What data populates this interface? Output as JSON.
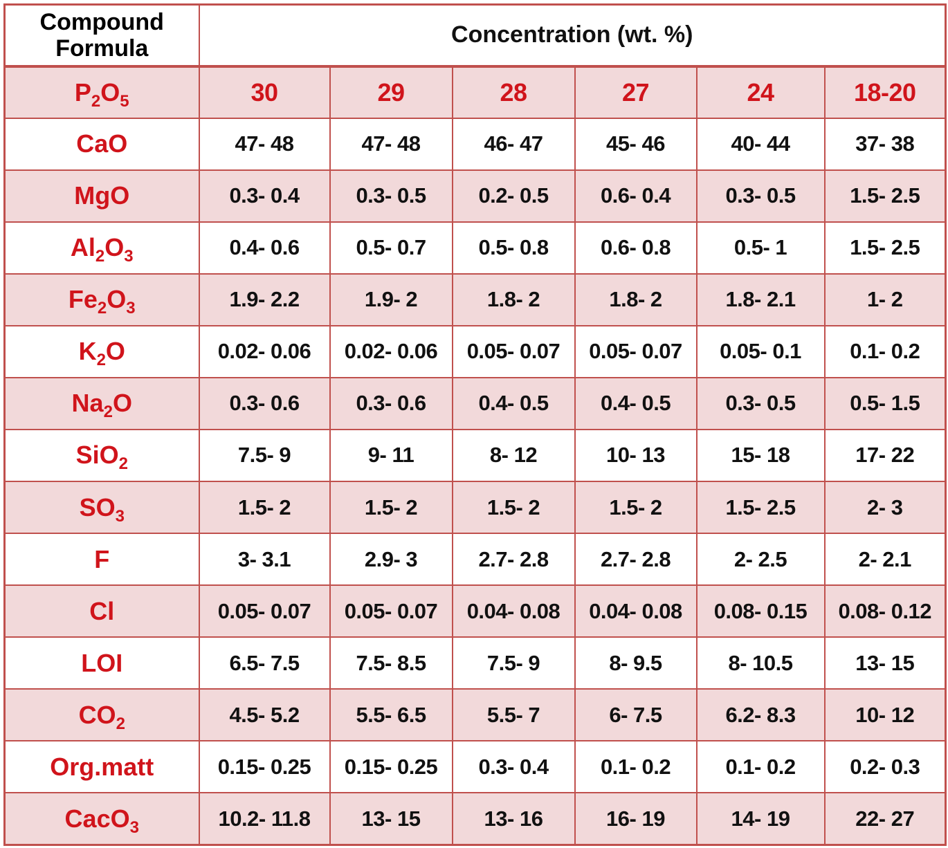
{
  "header": {
    "compound_label_line1": "Compound",
    "compound_label_line2": "Formula",
    "concentration_label": "Concentration (wt. %)"
  },
  "rows": [
    {
      "formula": [
        "P",
        "2",
        "O",
        "5"
      ],
      "values": [
        "30",
        "29",
        "28",
        "27",
        "24",
        "18-20"
      ]
    },
    {
      "formula": [
        "CaO"
      ],
      "values": [
        "47- 48",
        "47- 48",
        "46- 47",
        "45- 46",
        "40- 44",
        "37- 38"
      ]
    },
    {
      "formula": [
        "MgO"
      ],
      "values": [
        "0.3- 0.4",
        "0.3- 0.5",
        "0.2- 0.5",
        "0.6- 0.4",
        "0.3- 0.5",
        "1.5- 2.5"
      ]
    },
    {
      "formula": [
        "Al",
        "2",
        "O",
        "3"
      ],
      "values": [
        "0.4- 0.6",
        "0.5- 0.7",
        "0.5- 0.8",
        "0.6- 0.8",
        "0.5- 1",
        "1.5- 2.5"
      ]
    },
    {
      "formula": [
        "Fe",
        "2",
        "O",
        "3"
      ],
      "values": [
        "1.9- 2.2",
        "1.9- 2",
        "1.8- 2",
        "1.8- 2",
        "1.8- 2.1",
        "1- 2"
      ]
    },
    {
      "formula": [
        "K",
        "2",
        "O"
      ],
      "values": [
        "0.02- 0.06",
        "0.02- 0.06",
        "0.05- 0.07",
        "0.05- 0.07",
        "0.05- 0.1",
        "0.1- 0.2"
      ]
    },
    {
      "formula": [
        "Na",
        "2",
        "O"
      ],
      "values": [
        "0.3- 0.6",
        "0.3- 0.6",
        "0.4- 0.5",
        "0.4- 0.5",
        "0.3- 0.5",
        "0.5- 1.5"
      ]
    },
    {
      "formula": [
        "SiO",
        "2"
      ],
      "values": [
        "7.5- 9",
        "9- 11",
        "8- 12",
        "10- 13",
        "15- 18",
        "17- 22"
      ]
    },
    {
      "formula": [
        "SO",
        "3"
      ],
      "values": [
        "1.5- 2",
        "1.5- 2",
        "1.5- 2",
        "1.5- 2",
        "1.5- 2.5",
        "2- 3"
      ]
    },
    {
      "formula": [
        "F"
      ],
      "values": [
        "3- 3.1",
        "2.9- 3",
        "2.7- 2.8",
        "2.7- 2.8",
        "2- 2.5",
        "2- 2.1"
      ]
    },
    {
      "formula": [
        "Cl"
      ],
      "values": [
        "0.05- 0.07",
        "0.05- 0.07",
        "0.04- 0.08",
        "0.04- 0.08",
        "0.08- 0.15",
        "0.08- 0.12"
      ]
    },
    {
      "formula": [
        "LOI"
      ],
      "values": [
        "6.5- 7.5",
        "7.5- 8.5",
        "7.5- 9",
        "8- 9.5",
        "8- 10.5",
        "13- 15"
      ]
    },
    {
      "formula": [
        "CO",
        "2"
      ],
      "values": [
        "4.5- 5.2",
        "5.5- 6.5",
        "5.5- 7",
        "6- 7.5",
        "6.2- 8.3",
        "10- 12"
      ]
    },
    {
      "formula": [
        "Org.matt"
      ],
      "values": [
        "0.15- 0.25",
        "0.15- 0.25",
        "0.3- 0.4",
        "0.1- 0.2",
        "0.1- 0.2",
        "0.2- 0.3"
      ]
    },
    {
      "formula": [
        "CacO",
        "3"
      ],
      "values": [
        "10.2- 11.8",
        "13- 15",
        "13- 16",
        "16- 19",
        "14- 19",
        "22- 27"
      ]
    }
  ],
  "colors": {
    "formula_text": "#d0141b",
    "border": "#c0504d",
    "pink_row": "#f2d9da",
    "white_row": "#ffffff"
  }
}
